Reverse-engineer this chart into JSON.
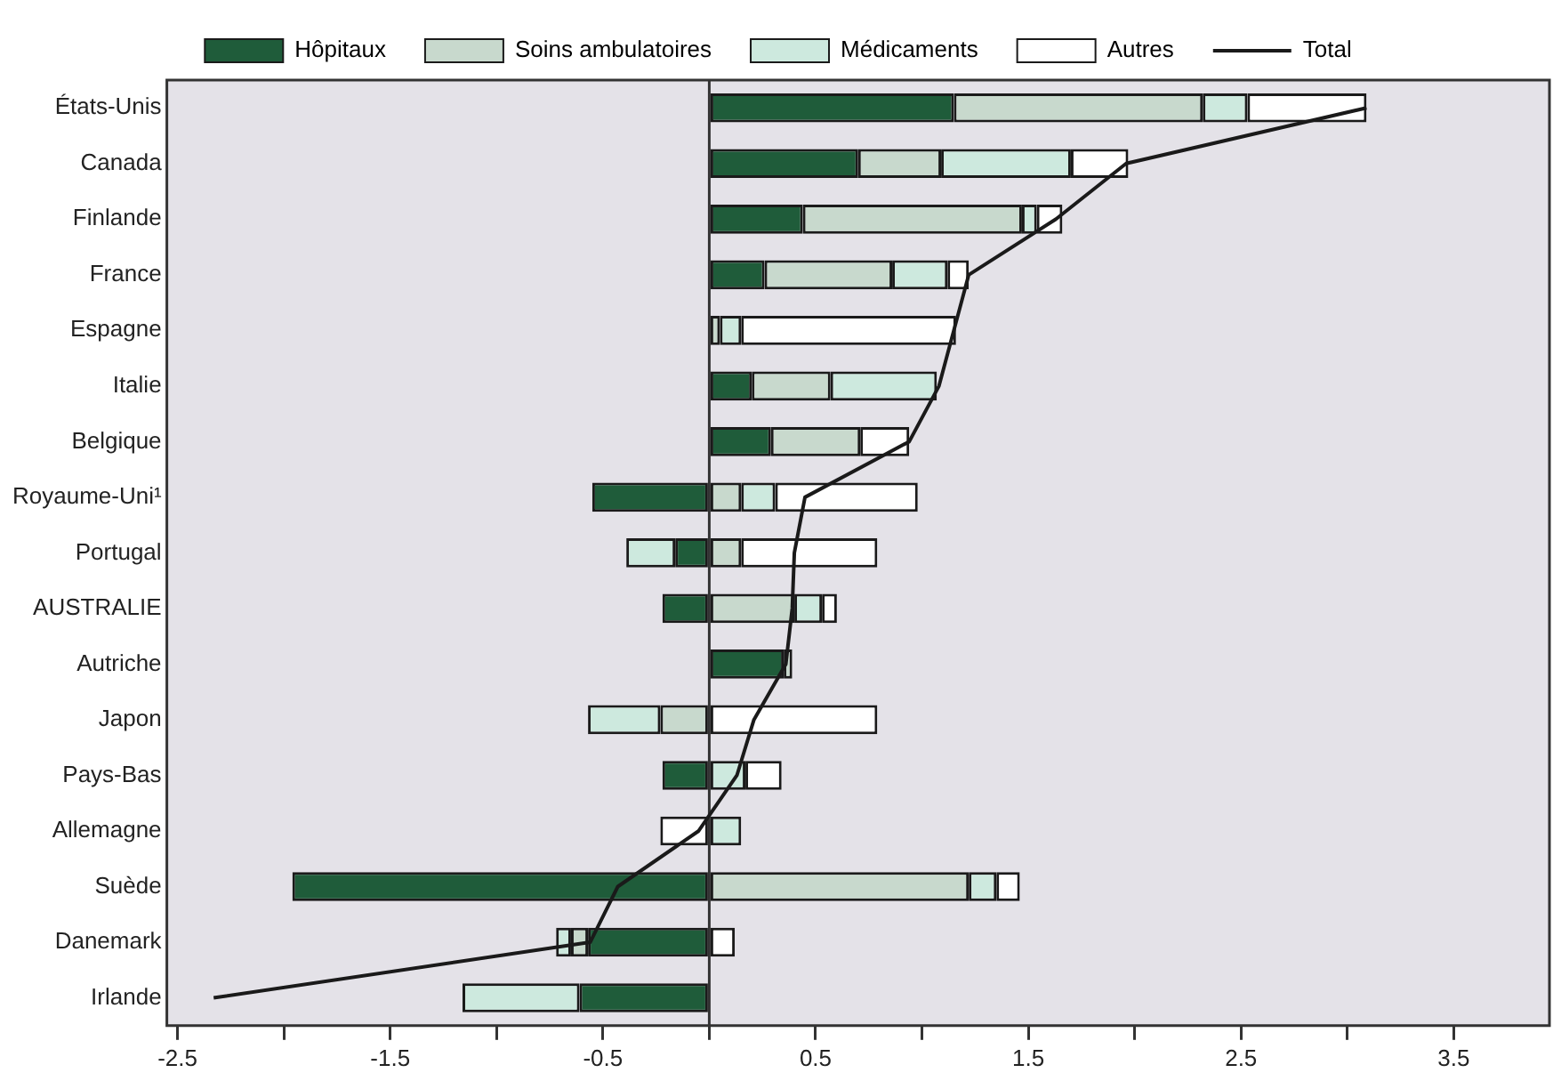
{
  "chart_data": {
    "type": "bar",
    "orientation": "horizontal",
    "stacked": true,
    "categories": [
      "États-Unis",
      "Canada",
      "Finlande",
      "France",
      "Espagne",
      "Italie",
      "Belgique",
      "Royaume-Uni¹",
      "Portugal",
      "AUSTRALIE",
      "Autriche",
      "Japon",
      "Pays-Bas",
      "Allemagne",
      "Suède",
      "Danemark",
      "Irlande"
    ],
    "series": [
      {
        "name": "Hôpitaux",
        "color": "#1f5c3a",
        "values": [
          1.15,
          0.7,
          0.44,
          0.26,
          null,
          0.2,
          0.29,
          -0.55,
          -0.16,
          -0.22,
          0.35,
          null,
          -0.22,
          null,
          -1.96,
          -0.57,
          -0.61
        ]
      },
      {
        "name": "Soins ambulatoires",
        "color": "#c8d9cd",
        "values": [
          1.17,
          0.39,
          1.03,
          0.6,
          0.05,
          0.37,
          0.42,
          0.15,
          0.15,
          0.4,
          0.04,
          -0.23,
          null,
          null,
          1.22,
          -0.08,
          null
        ]
      },
      {
        "name": "Médicaments",
        "color": "#cde9de",
        "values": [
          0.21,
          0.61,
          0.07,
          0.26,
          0.1,
          0.5,
          null,
          0.16,
          -0.23,
          0.13,
          null,
          -0.34,
          0.17,
          0.15,
          0.13,
          -0.07,
          -0.55
        ]
      },
      {
        "name": "Autres",
        "color": "#ffffff",
        "values": [
          0.56,
          0.27,
          0.12,
          0.1,
          1.01,
          null,
          0.23,
          0.67,
          0.64,
          0.07,
          null,
          0.79,
          0.17,
          -0.23,
          0.11,
          0.12,
          null
        ]
      },
      {
        "name": "Total",
        "type": "line",
        "color": "#1a1a1a",
        "marker": "none",
        "values": [
          3.09,
          1.96,
          1.63,
          1.22,
          1.15,
          1.08,
          0.94,
          0.45,
          0.4,
          0.39,
          0.36,
          0.21,
          0.13,
          -0.05,
          -0.43,
          -0.56,
          -2.33
        ]
      }
    ],
    "xlim": [
      -2.55,
      3.95
    ],
    "xticks": [
      -2.5,
      {
        "value": -2,
        "label": null
      },
      -1.5,
      {
        "value": -1,
        "label": null
      },
      -0.5,
      {
        "value": 0,
        "label": null
      },
      0.5,
      {
        "value": 1,
        "label": null
      },
      1.5,
      {
        "value": 2,
        "label": null
      },
      2.5,
      {
        "value": 3,
        "label": null
      },
      3.5
    ],
    "ref_lines": [
      {
        "axis": "x",
        "value": 0,
        "color": "#333333"
      }
    ],
    "legend": "top"
  }
}
